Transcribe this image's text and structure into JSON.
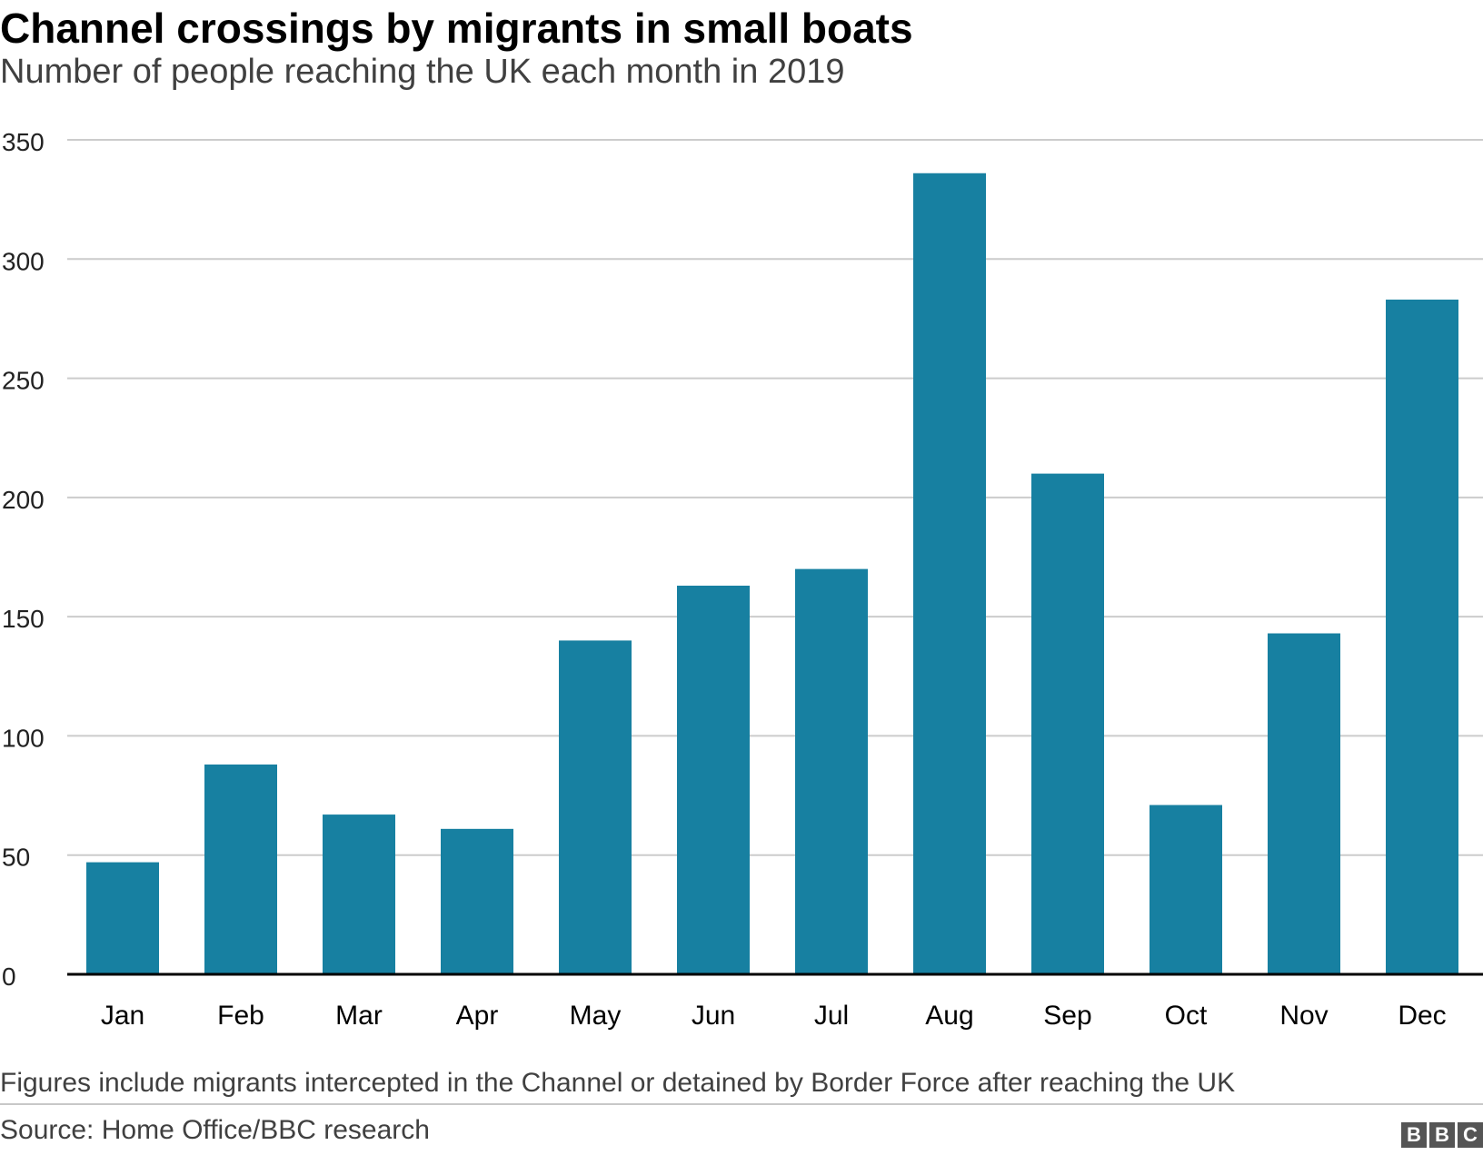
{
  "title": "Channel crossings by migrants in small boats",
  "subtitle": "Number of people reaching the UK each month in 2019",
  "note": "Figures include migrants intercepted in the Channel or detained by Border Force after reaching the UK",
  "source": "Source: Home Office/BBC research",
  "logo": [
    "B",
    "B",
    "C"
  ],
  "colors": {
    "bar": "#1780a1",
    "grid": "#cccccc",
    "axis": "#000000",
    "text": "#222222"
  },
  "chart_data": {
    "type": "bar",
    "title": "Channel crossings by migrants in small boats",
    "subtitle": "Number of people reaching the UK each month in 2019",
    "xlabel": "",
    "ylabel": "",
    "categories": [
      "Jan",
      "Feb",
      "Mar",
      "Apr",
      "May",
      "Jun",
      "Jul",
      "Aug",
      "Sep",
      "Oct",
      "Nov",
      "Dec"
    ],
    "values": [
      47,
      88,
      67,
      61,
      140,
      163,
      170,
      336,
      210,
      71,
      143,
      283
    ],
    "ylim": [
      0,
      350
    ],
    "yticks": [
      0,
      50,
      100,
      150,
      200,
      250,
      300,
      350
    ],
    "grid": true,
    "legend": "none"
  }
}
